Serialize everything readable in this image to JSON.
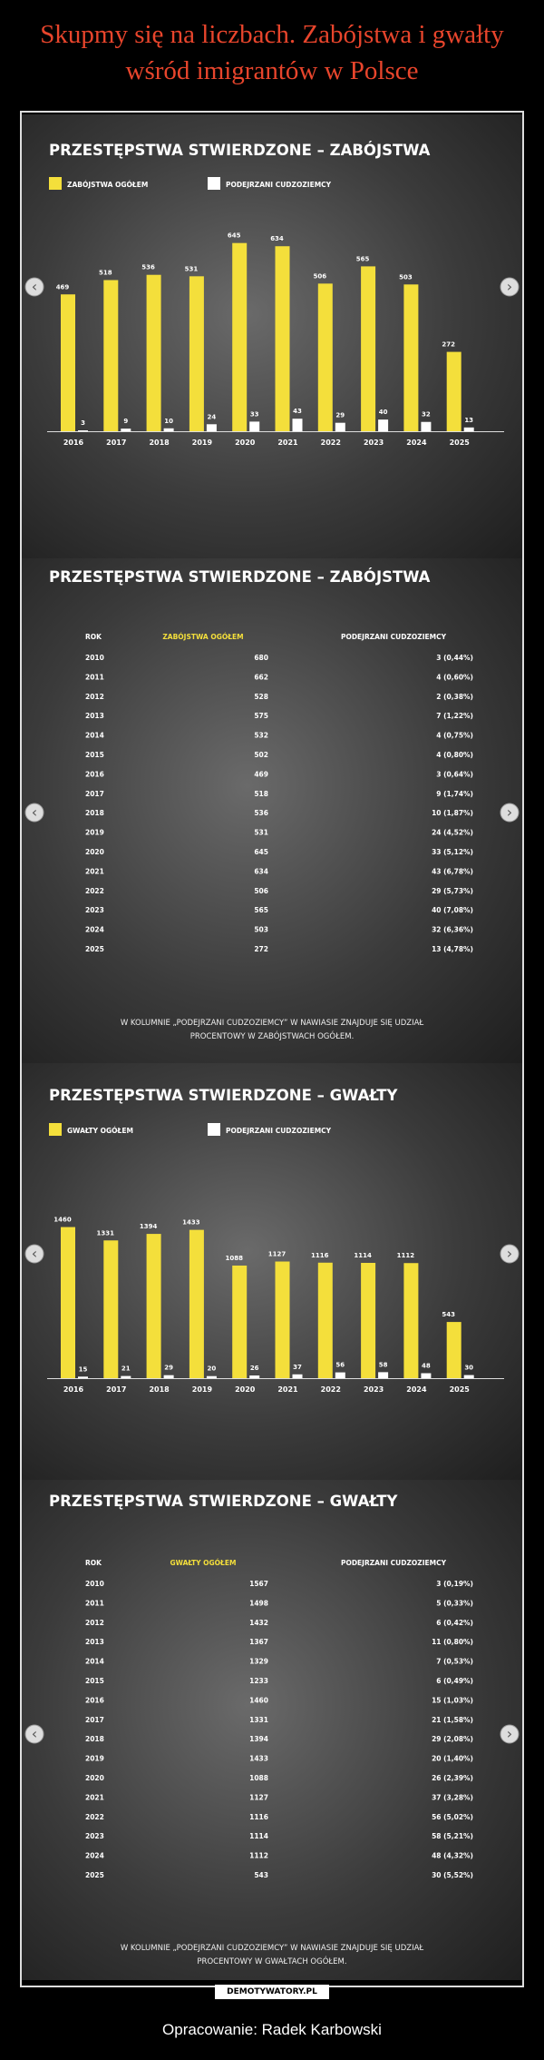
{
  "title": "Skupmy się na liczbach. Zabójstwa i gwałty wśród imigrantów w Polsce",
  "chart_data": [
    {
      "type": "bar",
      "title": "PRZESTĘPSTWA STWIERDZONE – ZABÓJSTWA",
      "categories": [
        "2016",
        "2017",
        "2018",
        "2019",
        "2020",
        "2021",
        "2022",
        "2023",
        "2024",
        "2025"
      ],
      "series": [
        {
          "name": "ZABÓJSTWA OGÓŁEM",
          "color": "#f4df3b",
          "values": [
            469,
            518,
            536,
            531,
            645,
            634,
            506,
            565,
            503,
            272
          ]
        },
        {
          "name": "PODEJRZANI CUDZOZIEMCY",
          "color": "#ffffff",
          "values": [
            3,
            9,
            10,
            24,
            33,
            43,
            29,
            40,
            32,
            13
          ]
        }
      ],
      "ylim": [
        0,
        700
      ]
    },
    {
      "type": "bar",
      "title": "PRZESTĘPSTWA STWIERDZONE – GWAŁTY",
      "categories": [
        "2016",
        "2017",
        "2018",
        "2019",
        "2020",
        "2021",
        "2022",
        "2023",
        "2024",
        "2025"
      ],
      "series": [
        {
          "name": "GWAŁTY OGÓŁEM",
          "color": "#f4df3b",
          "values": [
            1460,
            1331,
            1394,
            1433,
            1088,
            1127,
            1116,
            1114,
            1112,
            543
          ]
        },
        {
          "name": "PODEJRZANI CUDZOZIEMCY",
          "color": "#ffffff",
          "values": [
            15,
            21,
            29,
            20,
            26,
            37,
            56,
            58,
            48,
            30
          ]
        }
      ],
      "ylim": [
        0,
        1500
      ]
    }
  ],
  "tables": [
    {
      "title": "PRZESTĘPSTWA STWIERDZONE – ZABÓJSTWA",
      "columns": [
        "ROK",
        "ZABÓJSTWA OGÓŁEM",
        "PODEJRZANI CUDZOZIEMCY"
      ],
      "rows": [
        [
          "2010",
          "680",
          "3 (0,44%)"
        ],
        [
          "2011",
          "662",
          "4 (0,60%)"
        ],
        [
          "2012",
          "528",
          "2 (0,38%)"
        ],
        [
          "2013",
          "575",
          "7 (1,22%)"
        ],
        [
          "2014",
          "532",
          "4 (0,75%)"
        ],
        [
          "2015",
          "502",
          "4 (0,80%)"
        ],
        [
          "2016",
          "469",
          "3 (0,64%)"
        ],
        [
          "2017",
          "518",
          "9 (1,74%)"
        ],
        [
          "2018",
          "536",
          "10 (1,87%)"
        ],
        [
          "2019",
          "531",
          "24 (4,52%)"
        ],
        [
          "2020",
          "645",
          "33 (5,12%)"
        ],
        [
          "2021",
          "634",
          "43 (6,78%)"
        ],
        [
          "2022",
          "506",
          "29 (5,73%)"
        ],
        [
          "2023",
          "565",
          "40 (7,08%)"
        ],
        [
          "2024",
          "503",
          "32 (6,36%)"
        ],
        [
          "2025",
          "272",
          "13 (4,78%)"
        ]
      ],
      "note": "W KOLUMNIE „PODEJRZANI CUDZOZIEMCY” W NAWIASIE ZNAJDUJE SIĘ UDZIAŁ PROCENTOWY W ZABÓJSTWACH OGÓŁEM."
    },
    {
      "title": "PRZESTĘPSTWA STWIERDZONE – GWAŁTY",
      "columns": [
        "ROK",
        "GWAŁTY OGÓŁEM",
        "PODEJRZANI CUDZOZIEMCY"
      ],
      "rows": [
        [
          "2010",
          "1567",
          "3 (0,19%)"
        ],
        [
          "2011",
          "1498",
          "5 (0,33%)"
        ],
        [
          "2012",
          "1432",
          "6 (0,42%)"
        ],
        [
          "2013",
          "1367",
          "11 (0,80%)"
        ],
        [
          "2014",
          "1329",
          "7 (0,53%)"
        ],
        [
          "2015",
          "1233",
          "6 (0,49%)"
        ],
        [
          "2016",
          "1460",
          "15 (1,03%)"
        ],
        [
          "2017",
          "1331",
          "21 (1,58%)"
        ],
        [
          "2018",
          "1394",
          "29 (2,08%)"
        ],
        [
          "2019",
          "1433",
          "20 (1,40%)"
        ],
        [
          "2020",
          "1088",
          "26 (2,39%)"
        ],
        [
          "2021",
          "1127",
          "37 (3,28%)"
        ],
        [
          "2022",
          "1116",
          "56 (5,02%)"
        ],
        [
          "2023",
          "1114",
          "58 (5,21%)"
        ],
        [
          "2024",
          "1112",
          "48 (4,32%)"
        ],
        [
          "2025",
          "543",
          "30 (5,52%)"
        ]
      ],
      "note": "W KOLUMNIE „PODEJRZANI CUDZOZIEMCY” W NAWIASIE ZNAJDUJE SIĘ UDZIAŁ PROCENTOWY W GWAŁTACH OGÓŁEM."
    }
  ],
  "logo": "DEMOTYWATORY.PL",
  "caption": "Opracowanie: Radek Karbowski"
}
